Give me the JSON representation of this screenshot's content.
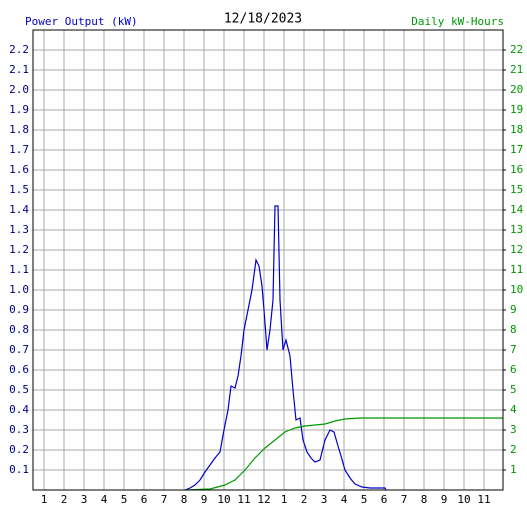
{
  "chart_data": {
    "type": "line",
    "title": "12/18/2023",
    "y_label": "Power Output (kW)",
    "y2_label": "Daily kW-Hours",
    "xlim": [
      0.45,
      23.95
    ],
    "xticks": [
      1,
      2,
      3,
      4,
      5,
      6,
      7,
      8,
      9,
      10,
      11,
      12,
      {
        "value": 13,
        "label": "1"
      },
      {
        "value": 14,
        "label": "2"
      },
      {
        "value": 15,
        "label": "3"
      },
      {
        "value": 16,
        "label": "4"
      },
      {
        "value": 17,
        "label": "5"
      },
      {
        "value": 18,
        "label": "6"
      },
      {
        "value": 19,
        "label": "7"
      },
      {
        "value": 20,
        "label": "8"
      },
      {
        "value": 21,
        "label": "9"
      },
      {
        "value": 22,
        "label": "10"
      },
      {
        "value": 23,
        "label": "11"
      }
    ],
    "ylim": [
      0,
      2.3
    ],
    "yticks": [
      0.1,
      0.2,
      0.3,
      0.4,
      0.5,
      0.6,
      0.7,
      0.8,
      0.9,
      {
        "value": 1,
        "label": "1.0"
      },
      1.1,
      1.2,
      1.3,
      1.4,
      1.5,
      1.6,
      1.7,
      1.8,
      1.9,
      {
        "value": 2,
        "label": "2.0"
      },
      2.1,
      2.2
    ],
    "y2lim": [
      0,
      23
    ],
    "y2ticks": [
      1,
      2,
      3,
      4,
      5,
      6,
      7,
      8,
      9,
      10,
      11,
      12,
      13,
      14,
      15,
      16,
      17,
      18,
      19,
      20,
      21,
      22
    ],
    "grid": true,
    "series": [
      {
        "name": "Power Output (kW)",
        "color": "#0000cc",
        "x": [
          8.05,
          8.3,
          8.55,
          8.8,
          9.05,
          9.3,
          9.55,
          9.8,
          10.0,
          10.2,
          10.35,
          10.55,
          10.7,
          10.85,
          11.0,
          11.2,
          11.4,
          11.6,
          11.75,
          11.9,
          12.0,
          12.15,
          12.3,
          12.45,
          12.55,
          12.7,
          12.8,
          12.95,
          13.1,
          13.3,
          13.45,
          13.6,
          13.8,
          13.95,
          14.15,
          14.35,
          14.55,
          14.8,
          15.05,
          15.3,
          15.5,
          15.7,
          15.85,
          16.05,
          16.3,
          16.55,
          16.9,
          17.3,
          18.05,
          18.1
        ],
        "values": [
          0,
          0.01,
          0.025,
          0.05,
          0.09,
          0.125,
          0.16,
          0.19,
          0.3,
          0.4,
          0.52,
          0.51,
          0.57,
          0.67,
          0.8,
          0.9,
          1.0,
          1.15,
          1.12,
          1.02,
          0.9,
          0.7,
          0.8,
          0.95,
          1.42,
          1.42,
          0.95,
          0.7,
          0.75,
          0.67,
          0.5,
          0.35,
          0.36,
          0.25,
          0.19,
          0.16,
          0.14,
          0.15,
          0.25,
          0.3,
          0.29,
          0.22,
          0.17,
          0.1,
          0.06,
          0.03,
          0.015,
          0.01,
          0.01,
          0
        ]
      },
      {
        "name": "Daily kW-Hours",
        "color": "#009900",
        "axis": "y2",
        "x": [
          8.05,
          9.3,
          10.05,
          10.55,
          11.05,
          11.55,
          12.05,
          12.55,
          13.05,
          13.55,
          14.05,
          14.55,
          15.05,
          15.55,
          16.05,
          16.8,
          23.95
        ],
        "values": [
          0,
          0.05,
          0.25,
          0.5,
          1.0,
          1.6,
          2.1,
          2.5,
          2.9,
          3.1,
          3.2,
          3.25,
          3.3,
          3.45,
          3.55,
          3.6,
          3.6
        ]
      }
    ]
  }
}
